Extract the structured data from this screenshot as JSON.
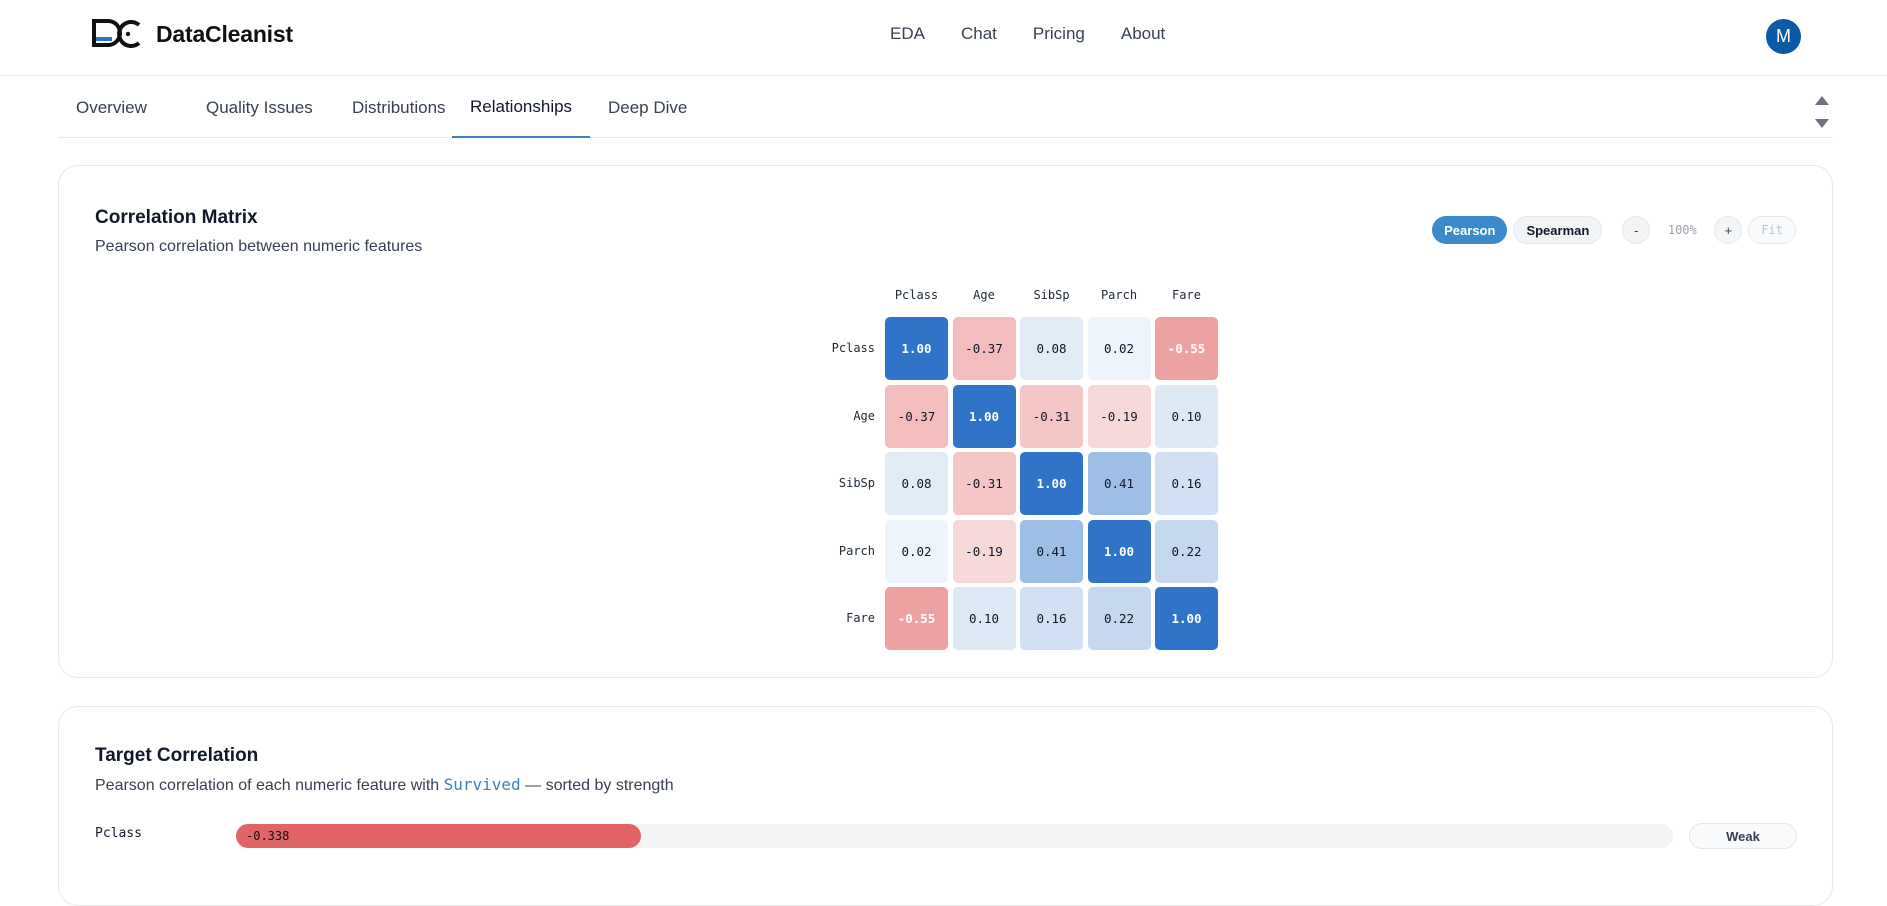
{
  "app": {
    "name": "DataCleanist",
    "logo_text": "DC",
    "avatar_initial": "M"
  },
  "nav": [
    {
      "label": "EDA"
    },
    {
      "label": "Chat"
    },
    {
      "label": "Pricing"
    },
    {
      "label": "About"
    }
  ],
  "tabs": [
    {
      "label": "Overview",
      "active": false
    },
    {
      "label": "Quality Issues",
      "active": false
    },
    {
      "label": "Distributions",
      "active": false
    },
    {
      "label": "Relationships",
      "active": true
    },
    {
      "label": "Deep Dive",
      "active": false
    }
  ],
  "correlation": {
    "title": "Correlation Matrix",
    "subtitle": "Pearson correlation between numeric features",
    "methods": [
      {
        "label": "Pearson",
        "active": true
      },
      {
        "label": "Spearman",
        "active": false
      }
    ],
    "zoom_out": "-",
    "zoom_level": "100%",
    "zoom_in": "+",
    "fit": "Fit"
  },
  "chart_data": {
    "type": "heatmap",
    "title": "Correlation Matrix",
    "columns": [
      "Pclass",
      "Age",
      "SibSp",
      "Parch",
      "Fare"
    ],
    "rows": [
      "Pclass",
      "Age",
      "SibSp",
      "Parch",
      "Fare"
    ],
    "values": [
      [
        1.0,
        -0.37,
        0.08,
        0.02,
        -0.55
      ],
      [
        -0.37,
        1.0,
        -0.31,
        -0.19,
        0.1
      ],
      [
        0.08,
        -0.31,
        1.0,
        0.41,
        0.16
      ],
      [
        0.02,
        -0.19,
        0.41,
        1.0,
        0.22
      ],
      [
        -0.55,
        0.1,
        0.16,
        0.22,
        1.0
      ]
    ],
    "labels": [
      [
        "1.00",
        "-0.37",
        "0.08",
        "0.02",
        "-0.55"
      ],
      [
        "-0.37",
        "1.00",
        "-0.31",
        "-0.19",
        "0.10"
      ],
      [
        "0.08",
        "-0.31",
        "1.00",
        "0.41",
        "0.16"
      ],
      [
        "0.02",
        "-0.19",
        "0.41",
        "1.00",
        "0.22"
      ],
      [
        "-0.55",
        "0.10",
        "0.16",
        "0.22",
        "1.00"
      ]
    ],
    "positive_color": "#2f74c8",
    "negative_color": "#e26565"
  },
  "target": {
    "title": "Target Correlation",
    "subtitle_prefix": "Pearson correlation of each numeric feature with ",
    "target_name": "Survived",
    "subtitle_suffix": " — sorted by strength",
    "items": [
      {
        "feature": "Pclass",
        "value": -0.338,
        "value_label": "-0.338",
        "strength": "Weak"
      }
    ]
  }
}
